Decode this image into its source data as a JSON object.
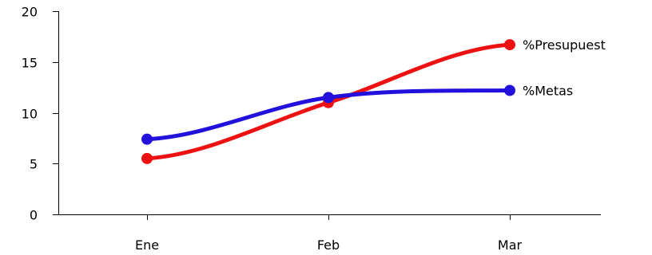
{
  "chart_data": {
    "type": "line",
    "categories": [
      "Ene",
      "Feb",
      "Mar"
    ],
    "ylim": [
      0,
      20
    ],
    "yticks": [
      0,
      5,
      10,
      15,
      20
    ],
    "grid": false,
    "legend": "none",
    "curve": "smooth",
    "series": [
      {
        "name": "%Presupuest",
        "color": "#ee1111",
        "values": [
          5.5,
          11.0,
          16.7
        ]
      },
      {
        "name": "%Metas",
        "color": "#2211dd",
        "values": [
          7.4,
          11.5,
          12.2
        ]
      }
    ]
  }
}
